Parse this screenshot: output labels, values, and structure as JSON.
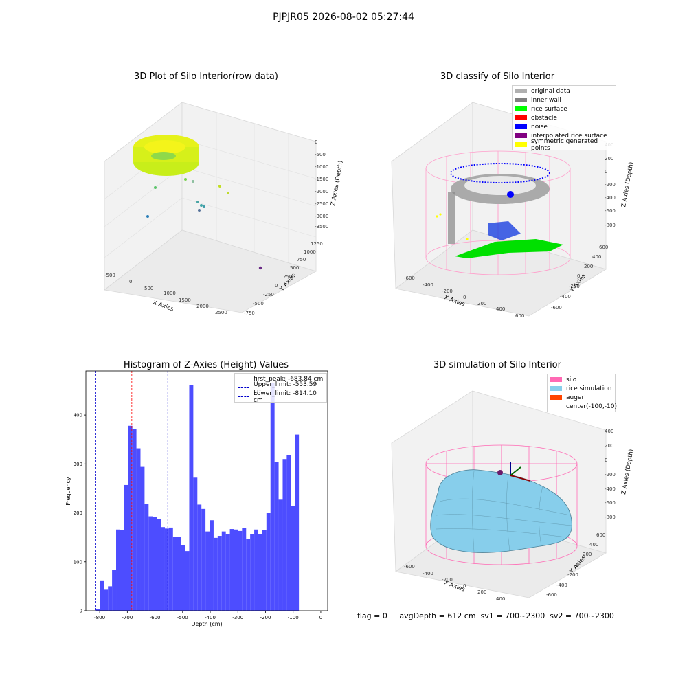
{
  "suptitle": "PJPJR05 2026-08-02 05:27:44",
  "status_line": "flag = 0     avgDepth = 612 cm  sv1 = 700~2300  sv2 = 700~2300",
  "colors": {
    "bar": "#4d4dff",
    "first_peak": "#ff0000",
    "limit": "#0000cc",
    "pink": "#ff69b4",
    "sky": "#87ceeb",
    "orange": "#ff4500"
  },
  "panels": {
    "raw": {
      "title": "3D Plot of Silo Interior(row data)",
      "xlabel": "X Axies",
      "ylabel": "Y Axies",
      "zlabel": "Z Axies (Depth)",
      "xticks": [
        "-500",
        "0",
        "500",
        "1000",
        "1500",
        "2000",
        "2500"
      ],
      "yticks": [
        "1250",
        "1000",
        "750",
        "500",
        "250",
        "0",
        "-250",
        "-500",
        "-750"
      ],
      "zticks": [
        "0",
        "-500",
        "-1000",
        "-1500",
        "-2000",
        "-2500",
        "-3000",
        "-3500"
      ]
    },
    "classify": {
      "title": "3D classify of Silo Interior",
      "xlabel": "X Axies",
      "ylabel": "Y Axies",
      "zlabel": "Z Axies (Depth)",
      "xticks": [
        "-600",
        "-400",
        "-200",
        "0",
        "200",
        "400",
        "600"
      ],
      "yticks": [
        "600",
        "400",
        "200",
        "0",
        "-200",
        "-400",
        "-600"
      ],
      "zticks": [
        "400",
        "200",
        "0",
        "-200",
        "-400",
        "-600",
        "-800"
      ],
      "legend": [
        {
          "label": "original data",
          "color": "#b0b0b0"
        },
        {
          "label": "inner wall",
          "color": "#808080"
        },
        {
          "label": "rice surface",
          "color": "#00ff00"
        },
        {
          "label": "obstacle",
          "color": "#ff0000"
        },
        {
          "label": "noise",
          "color": "#0000ff"
        },
        {
          "label": "interpolated rice surface",
          "color": "#800080"
        },
        {
          "label": "symmetric generated points",
          "color": "#ffff00"
        }
      ]
    },
    "simulation": {
      "title": "3D simulation of Silo Interior",
      "xlabel": "X Axies",
      "ylabel": "Y Axies",
      "zlabel": "Z Axies (Depth)",
      "xticks": [
        "-600",
        "-400",
        "-200",
        "0",
        "200",
        "400"
      ],
      "yticks": [
        "600",
        "400",
        "200",
        "0",
        "-200",
        "-400",
        "-600"
      ],
      "zticks": [
        "400",
        "200",
        "0",
        "-200",
        "-400",
        "-600",
        "-800"
      ],
      "legend": [
        {
          "label": "silo",
          "color": "#ff69b4"
        },
        {
          "label": "rice simulation",
          "color": "#87ceeb"
        },
        {
          "label": "auger",
          "color": "#ff4500"
        },
        {
          "label": "center(-100,-10)",
          "color": ""
        }
      ]
    }
  },
  "chart_data": {
    "type": "bar",
    "title": "Histogram of Z-Axies (Height) Values",
    "xlabel": "Depth (cm)",
    "ylabel": "Frequency",
    "xlim": [
      -850,
      25
    ],
    "ylim": [
      0,
      490
    ],
    "xticks": [
      -800,
      -700,
      -600,
      -500,
      -400,
      -300,
      -200,
      -100,
      0
    ],
    "yticks": [
      0,
      100,
      200,
      300,
      400
    ],
    "bin_start": -814.1,
    "bin_width": 14.7,
    "values": [
      3,
      62,
      43,
      50,
      83,
      166,
      165,
      257,
      378,
      372,
      332,
      294,
      218,
      193,
      192,
      187,
      171,
      168,
      170,
      151,
      151,
      134,
      122,
      461,
      272,
      217,
      208,
      162,
      185,
      149,
      153,
      162,
      156,
      167,
      166,
      163,
      169,
      146,
      157,
      166,
      156,
      165,
      200,
      466,
      304,
      227,
      310,
      318,
      214,
      360
    ],
    "lines": [
      {
        "label": "first_peak: -683.84 cm",
        "x": -683.84,
        "color": "#ff0000"
      },
      {
        "label": "Upper_limit: -553.59 cm",
        "x": -553.59,
        "color": "#0000cc"
      },
      {
        "label": "Lower_limit: -814.10 cm",
        "x": -814.1,
        "color": "#0000cc"
      }
    ]
  }
}
